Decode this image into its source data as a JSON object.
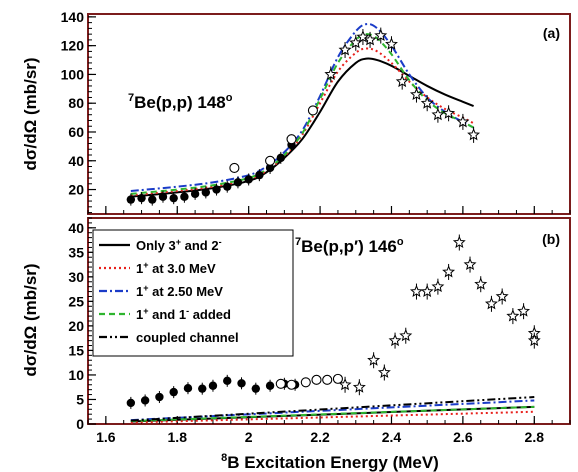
{
  "figure": {
    "xlabel_sup": "8",
    "xlabel_main": "B Excitation Energy (MeV)"
  },
  "chart_data": [
    {
      "type": "line",
      "panel": "(a)",
      "annotation": {
        "sup": "7",
        "main": "Be(p,p)  148",
        "deg": "o"
      },
      "ylabel": {
        "prefix": "d",
        "sigma": "σ",
        "mid": "/d",
        "omega": "Ω",
        "unit": " (mb/sr)"
      },
      "xlim": [
        1.55,
        2.9
      ],
      "ylim": [
        3,
        142
      ],
      "xticks": [
        1.6,
        1.8,
        2.0,
        2.2,
        2.4,
        2.6,
        2.8
      ],
      "xtick_labels": [
        "1.6",
        "1.8",
        "2",
        "2.2",
        "2.4",
        "2.6",
        "2.8"
      ],
      "yticks": [
        20,
        40,
        60,
        80,
        100,
        120,
        140
      ],
      "ytick_labels": [
        "20",
        "40",
        "60",
        "80",
        "100",
        "120",
        "140"
      ],
      "colors": {
        "solid": "#000000",
        "red": "#e8201c",
        "blue": "#1b3cc8",
        "green": "#2eb52e"
      },
      "series": [
        {
          "style": "solid",
          "color": "#000000",
          "x": [
            1.67,
            1.8,
            1.9,
            2.0,
            2.05,
            2.1,
            2.15,
            2.2,
            2.25,
            2.3,
            2.33,
            2.36,
            2.4,
            2.45,
            2.5,
            2.55,
            2.6,
            2.63
          ],
          "y": [
            15,
            18,
            21,
            26,
            32,
            42,
            55,
            74,
            95,
            108,
            111,
            110,
            106,
            99,
            92,
            86,
            81,
            78
          ]
        },
        {
          "style": "dotted",
          "color": "#e8201c",
          "x": [
            1.67,
            1.8,
            1.9,
            2.0,
            2.05,
            2.1,
            2.15,
            2.2,
            2.25,
            2.3,
            2.33,
            2.36,
            2.4,
            2.45,
            2.5,
            2.55,
            2.6,
            2.63
          ],
          "y": [
            16,
            19,
            22,
            27,
            33,
            43,
            58,
            80,
            102,
            115,
            118,
            116,
            108,
            95,
            84,
            76,
            70,
            66
          ]
        },
        {
          "style": "dashdot",
          "color": "#1b3cc8",
          "x": [
            1.67,
            1.8,
            1.9,
            2.0,
            2.05,
            2.1,
            2.15,
            2.2,
            2.25,
            2.3,
            2.33,
            2.36,
            2.4,
            2.45,
            2.5,
            2.55,
            2.6,
            2.63
          ],
          "y": [
            19,
            22,
            25,
            30,
            36,
            46,
            61,
            85,
            112,
            130,
            135,
            132,
            120,
            100,
            84,
            74,
            67,
            63
          ]
        },
        {
          "style": "dashed",
          "color": "#2eb52e",
          "x": [
            1.67,
            1.8,
            1.9,
            2.0,
            2.05,
            2.1,
            2.15,
            2.2,
            2.25,
            2.3,
            2.33,
            2.36,
            2.4,
            2.45,
            2.5,
            2.55,
            2.6,
            2.63
          ],
          "y": [
            17,
            20,
            23,
            28,
            34,
            44,
            59,
            83,
            108,
            124,
            128,
            125,
            114,
            96,
            82,
            73,
            67,
            63
          ]
        }
      ],
      "points_filled": {
        "x": [
          1.67,
          1.7,
          1.73,
          1.76,
          1.79,
          1.82,
          1.85,
          1.88,
          1.91,
          1.94,
          1.97,
          2.0,
          2.03,
          2.06,
          2.09,
          2.12
        ],
        "y": [
          13,
          14,
          13,
          15,
          14,
          15,
          17,
          18,
          20,
          22,
          25,
          27,
          30,
          35,
          42,
          51
        ]
      },
      "points_open": {
        "x": [
          1.96,
          2.06,
          2.12,
          2.18
        ],
        "y": [
          35,
          40,
          55,
          75
        ]
      },
      "points_star": {
        "x": [
          2.23,
          2.27,
          2.3,
          2.32,
          2.34,
          2.37,
          2.4,
          2.43,
          2.47,
          2.5,
          2.53,
          2.56,
          2.6,
          2.63
        ],
        "y": [
          100,
          117,
          122,
          126,
          124,
          127,
          121,
          95,
          86,
          80,
          72,
          73,
          67,
          58
        ]
      }
    },
    {
      "type": "line",
      "panel": "(b)",
      "annotation": {
        "sup": "7",
        "main": "Be(p,p′)  146",
        "deg": "o"
      },
      "ylabel": {
        "prefix": "d",
        "sigma": "σ",
        "mid": "/d",
        "omega": "Ω",
        "unit": " (mb/sr)"
      },
      "xlim": [
        1.55,
        2.9
      ],
      "ylim": [
        0,
        42
      ],
      "xticks": [
        1.6,
        1.8,
        2.0,
        2.2,
        2.4,
        2.6,
        2.8
      ],
      "xtick_labels": [
        "1.6",
        "1.8",
        "2",
        "2.2",
        "2.4",
        "2.6",
        "2.8"
      ],
      "yticks": [
        0,
        5,
        10,
        15,
        20,
        25,
        30,
        35,
        40
      ],
      "ytick_labels": [
        "0",
        "5",
        "10",
        "15",
        "20",
        "25",
        "30",
        "35",
        "40"
      ],
      "legend": [
        {
          "style": "solid",
          "color": "#000000",
          "main": "Only 3",
          "sup1": "+",
          "mid": " and 2",
          "sup2": "-"
        },
        {
          "style": "dotted",
          "color": "#e8201c",
          "main": "1",
          "sup1": "+",
          "mid": " at 3.0 MeV",
          "sup2": ""
        },
        {
          "style": "dashdot",
          "color": "#1b3cc8",
          "main": "1",
          "sup1": "+",
          "mid": " at 2.50 MeV",
          "sup2": ""
        },
        {
          "style": "dashed",
          "color": "#2eb52e",
          "main": "1",
          "sup1": "+",
          "mid": " and 1",
          "sup2": "-",
          "tail": " added"
        },
        {
          "style": "dashdotdot",
          "color": "#000000",
          "main": "coupled channel",
          "sup1": "",
          "mid": "",
          "sup2": ""
        }
      ],
      "series": [
        {
          "style": "solid",
          "color": "#000000",
          "x": [
            1.67,
            2.8
          ],
          "y": [
            0.5,
            3.5
          ]
        },
        {
          "style": "dotted",
          "color": "#e8201c",
          "x": [
            1.67,
            2.8
          ],
          "y": [
            0.3,
            2.5
          ]
        },
        {
          "style": "dashdot",
          "color": "#1b3cc8",
          "x": [
            1.67,
            2.8
          ],
          "y": [
            0.8,
            4.8
          ]
        },
        {
          "style": "dashed",
          "color": "#2eb52e",
          "x": [
            1.67,
            2.8
          ],
          "y": [
            0.6,
            3.5
          ]
        },
        {
          "style": "dashdotdot",
          "color": "#000000",
          "x": [
            1.67,
            2.8
          ],
          "y": [
            0.7,
            5.5
          ]
        }
      ],
      "points_filled": {
        "x": [
          1.67,
          1.71,
          1.75,
          1.79,
          1.83,
          1.87,
          1.9,
          1.94,
          1.98,
          2.02,
          2.06,
          2.1,
          2.13
        ],
        "y": [
          4.3,
          4.8,
          5.5,
          6.5,
          7.3,
          7.2,
          7.8,
          8.8,
          8.3,
          7.2,
          7.8,
          8.2,
          8.0
        ]
      },
      "points_open": {
        "x": [
          2.09,
          2.12,
          2.16,
          2.19,
          2.22,
          2.25
        ],
        "y": [
          8.2,
          8.0,
          8.5,
          9.0,
          9.0,
          9.2
        ]
      },
      "points_star": {
        "x": [
          2.27,
          2.31,
          2.35,
          2.38,
          2.41,
          2.44,
          2.47,
          2.5,
          2.53,
          2.56,
          2.59,
          2.62,
          2.65,
          2.68,
          2.71,
          2.74,
          2.77,
          2.8
        ],
        "y": [
          8.0,
          7.5,
          13,
          10.5,
          17,
          18,
          27,
          27,
          28,
          31,
          37,
          32.5,
          28.5,
          24.5,
          26,
          22,
          23,
          18.5
        ]
      },
      "star_point_extra": {
        "x": 2.8,
        "y": 17
      }
    }
  ]
}
